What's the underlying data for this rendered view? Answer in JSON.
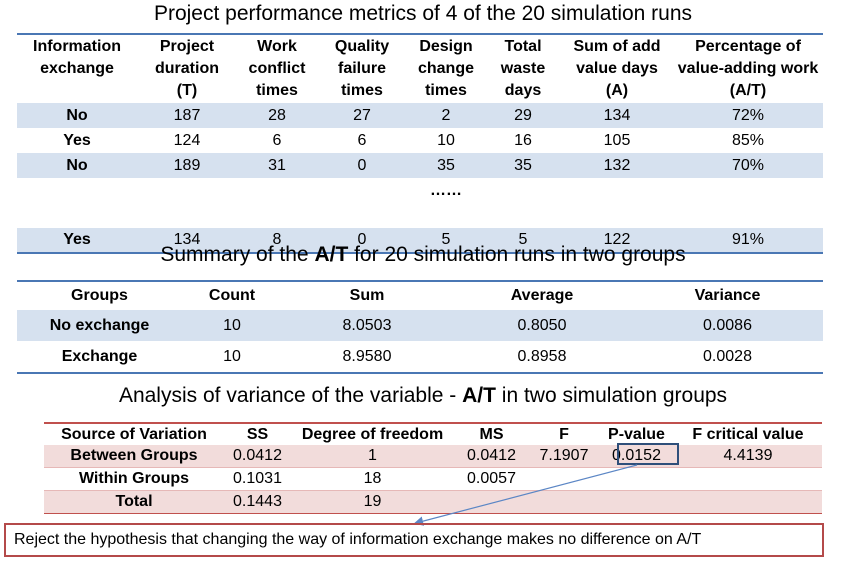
{
  "title1": "Project performance metrics of 4 of the 20 simulation runs",
  "table1": {
    "headers": [
      [
        "Information",
        "exchange",
        ""
      ],
      [
        "Project",
        "duration",
        "(T)"
      ],
      [
        "Work",
        "conflict",
        "times"
      ],
      [
        "Quality",
        "failure",
        "times"
      ],
      [
        "Design",
        "change",
        "times"
      ],
      [
        "Total",
        "waste",
        "days"
      ],
      [
        "Sum of add",
        "value days",
        "(A)"
      ],
      [
        "Percentage of",
        "value-adding work",
        "(A/T)"
      ]
    ],
    "rows": [
      [
        "No",
        "187",
        "28",
        "27",
        "2",
        "29",
        "134",
        "72%"
      ],
      [
        "Yes",
        "124",
        "6",
        "6",
        "10",
        "16",
        "105",
        "85%"
      ],
      [
        "No",
        "189",
        "31",
        "0",
        "35",
        "35",
        "132",
        "70%"
      ],
      [
        "Yes",
        "134",
        "8",
        "0",
        "5",
        "5",
        "122",
        "91%"
      ]
    ],
    "ellipsis": "……"
  },
  "title2_pre": "Summary of the ",
  "title2_bold": "A/T",
  "title2_post": " for 20 simulation runs in two groups",
  "table2": {
    "headers": [
      "Groups",
      "Count",
      "Sum",
      "Average",
      "Variance"
    ],
    "rows": [
      [
        "No exchange",
        "10",
        "8.0503",
        "0.8050",
        "0.0086"
      ],
      [
        "Exchange",
        "10",
        "8.9580",
        "0.8958",
        "0.0028"
      ]
    ]
  },
  "title3_pre": "Analysis of variance of the variable - ",
  "title3_bold": "A/T",
  "title3_post": " in two simulation groups",
  "table3": {
    "headers": [
      "Source of Variation",
      "SS",
      "Degree of freedom",
      "MS",
      "F",
      "P-value",
      "F critical value"
    ],
    "rows": [
      [
        "Between Groups",
        "0.0412",
        "1",
        "0.0412",
        "7.1907",
        "0.0152",
        "4.4139"
      ],
      [
        "Within Groups",
        "0.1031",
        "18",
        "0.0057",
        "",
        "",
        ""
      ],
      [
        "Total",
        "0.1443",
        "19",
        "",
        "",
        "",
        ""
      ]
    ]
  },
  "conclusion": "Reject the hypothesis that changing the way of information exchange makes no difference on A/T",
  "colors": {
    "blue_rule": "#4a77b4",
    "blue_band": "#d6e1ef",
    "red_rule": "#c0504d",
    "red_band": "#f2dcdb",
    "box": "#2f4f7a"
  }
}
